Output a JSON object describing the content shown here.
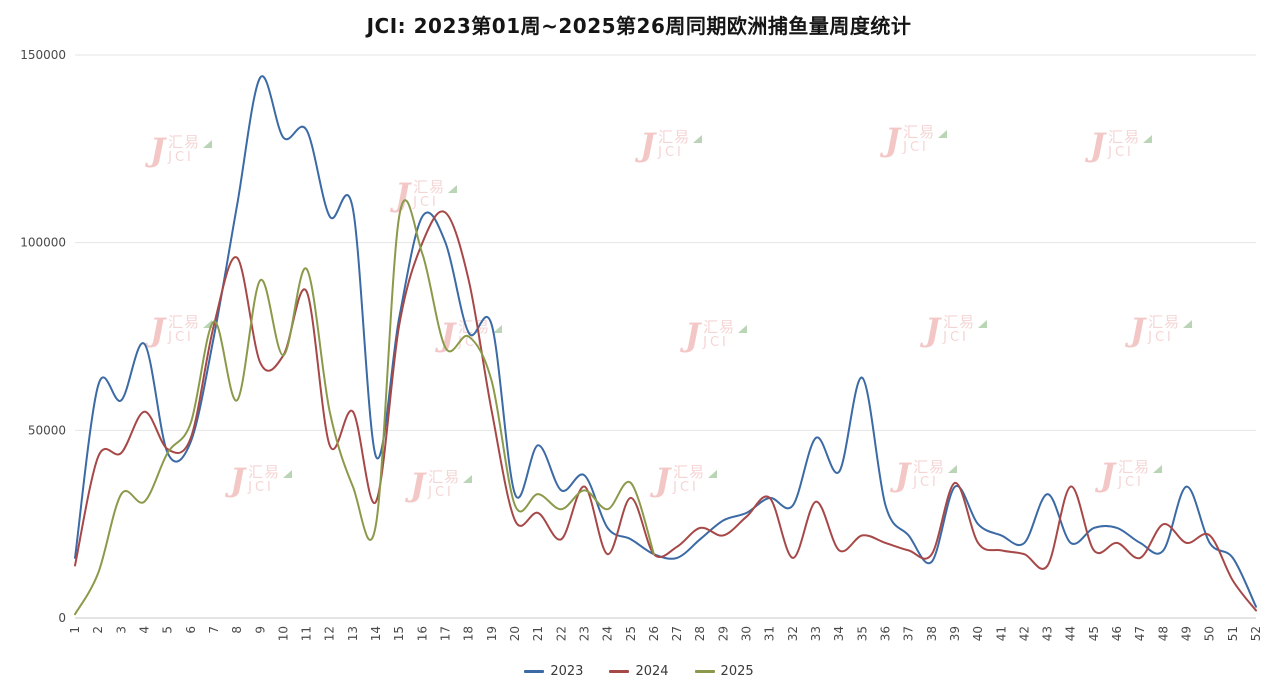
{
  "title": "JCI: 2023第01周~2025第26周同期欧洲捕鱼量周度统计",
  "watermark": {
    "j": "J",
    "text_cn": "汇易",
    "text_en": "JCI"
  },
  "legend": {
    "items": [
      "2023",
      "2024",
      "2025"
    ]
  },
  "chart_data": {
    "type": "line",
    "title": "JCI: 2023第01周~2025第26周同期欧洲捕鱼量周度统计",
    "xlabel": "",
    "ylabel": "",
    "ylim": [
      0,
      150000
    ],
    "yticks": [
      0,
      50000,
      100000,
      150000
    ],
    "grid": true,
    "legend_position": "bottom",
    "x": [
      1,
      2,
      3,
      4,
      5,
      6,
      7,
      8,
      9,
      10,
      11,
      12,
      13,
      14,
      15,
      16,
      17,
      18,
      19,
      20,
      21,
      22,
      23,
      24,
      25,
      26,
      27,
      28,
      29,
      30,
      31,
      32,
      33,
      34,
      35,
      36,
      37,
      38,
      39,
      40,
      41,
      42,
      43,
      44,
      45,
      46,
      47,
      48,
      49,
      50,
      51,
      52
    ],
    "series": [
      {
        "name": "2023",
        "color": "#3b6aa5",
        "values": [
          16000,
          62000,
          58000,
          73000,
          44000,
          47000,
          75000,
          110000,
          144000,
          128000,
          130000,
          107000,
          109000,
          43000,
          80000,
          107000,
          100000,
          76000,
          78000,
          33000,
          46000,
          34000,
          38000,
          24000,
          21000,
          17000,
          16000,
          21000,
          26000,
          28000,
          32000,
          30000,
          48000,
          39000,
          64000,
          30000,
          22000,
          15000,
          35000,
          25000,
          22000,
          20000,
          33000,
          20000,
          24000,
          24000,
          20000,
          18000,
          35000,
          20000,
          16000,
          3000
        ]
      },
      {
        "name": "2024",
        "color": "#a74848",
        "values": [
          14000,
          43000,
          44000,
          55000,
          45000,
          48000,
          78000,
          96000,
          68000,
          70000,
          87000,
          46000,
          55000,
          31000,
          78000,
          100000,
          108000,
          90000,
          55000,
          26000,
          28000,
          21000,
          35000,
          17000,
          32000,
          17000,
          19000,
          24000,
          22000,
          27000,
          32000,
          16000,
          31000,
          18000,
          22000,
          20000,
          18000,
          17000,
          36000,
          20000,
          18000,
          17000,
          14000,
          35000,
          18000,
          20000,
          16000,
          25000,
          20000,
          22000,
          10000,
          2000
        ]
      },
      {
        "name": "2025",
        "color": "#8b9a4a",
        "values": [
          1000,
          12000,
          33000,
          31000,
          44000,
          52000,
          79000,
          58000,
          90000,
          70000,
          93000,
          55000,
          35000,
          25000,
          107000,
          97000,
          72000,
          75000,
          63000,
          30000,
          33000,
          29000,
          34000,
          29000,
          36000,
          17000,
          null,
          null,
          null,
          null,
          null,
          null,
          null,
          null,
          null,
          null,
          null,
          null,
          null,
          null,
          null,
          null,
          null,
          null,
          null,
          null,
          null,
          null,
          null,
          null,
          null,
          null
        ]
      }
    ]
  }
}
